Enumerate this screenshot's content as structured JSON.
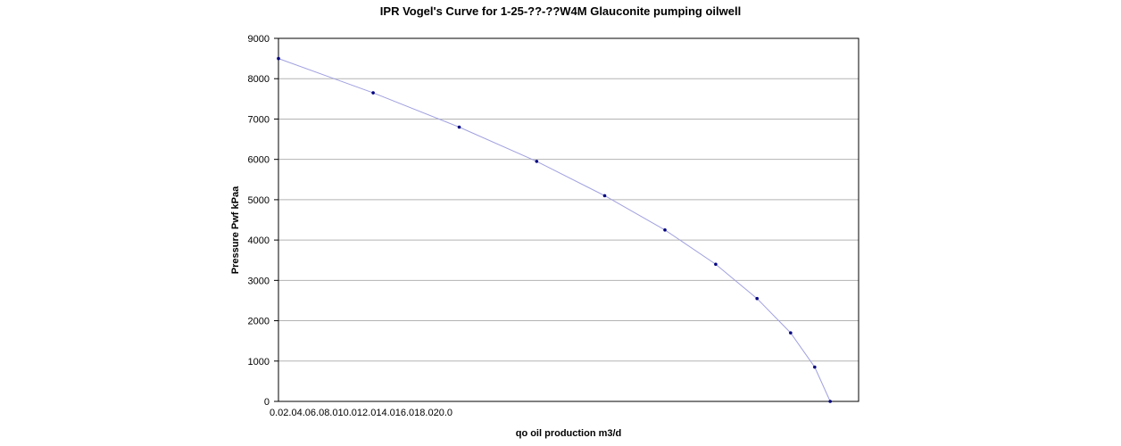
{
  "chart_data": {
    "type": "line",
    "title": "IPR Vogel's Curve for 1-25-??-??W4M Glauconite pumping oilwell",
    "xlabel": "qo oil production m3/d",
    "ylabel": "Pressure Pwf kPaa",
    "x_tick_labels": [
      "0.0",
      "2.0",
      "4.0",
      "6.0",
      "8.0",
      "10.0",
      "12.0",
      "14.0",
      "16.0",
      "18.0",
      "20.0"
    ],
    "y_ticks": [
      0,
      1000,
      2000,
      3000,
      4000,
      5000,
      6000,
      7000,
      8000,
      9000
    ],
    "ylim": [
      0,
      9000
    ],
    "xlim": [
      0,
      67.4
    ],
    "grid": "horizontal",
    "legend": "none",
    "line_color": "#a0a0e0",
    "marker_color": "#000080",
    "series": [
      {
        "x": [
          0,
          11.0,
          21.0,
          30.0,
          37.9,
          44.9,
          50.8,
          55.6,
          59.5,
          62.3,
          64.1
        ],
        "y": [
          8500,
          7650,
          6800,
          5950,
          5100,
          4250,
          3400,
          2550,
          1700,
          850,
          0
        ]
      }
    ]
  }
}
